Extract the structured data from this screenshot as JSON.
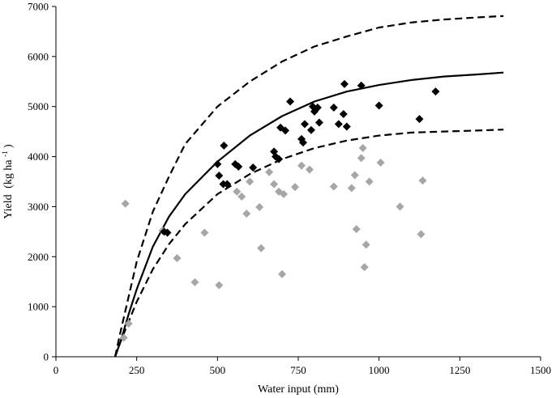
{
  "chart_data": {
    "type": "scatter",
    "title": "",
    "xlabel": "Water input (mm)",
    "ylabel": "Yield",
    "ylabel_unit_base": "(kg ha",
    "ylabel_unit_sup": "-1",
    "ylabel_unit_end": ")",
    "xlim": [
      0,
      1500
    ],
    "ylim": [
      0,
      7000
    ],
    "x_ticks": [
      0,
      250,
      500,
      750,
      1000,
      1250,
      1500
    ],
    "y_ticks": [
      0,
      1000,
      2000,
      3000,
      4000,
      5000,
      6000,
      7000
    ],
    "grid": false,
    "legend": "none",
    "colors": {
      "black_markers": "#000000",
      "grey_markers": "#a6a6a6",
      "curves": "#000000"
    },
    "series": [
      {
        "marker": "diamond",
        "color": "#000000",
        "points": [
          [
            335,
            2500
          ],
          [
            345,
            2480
          ],
          [
            500,
            3850
          ],
          [
            505,
            3620
          ],
          [
            518,
            3450
          ],
          [
            520,
            4220
          ],
          [
            530,
            3450
          ],
          [
            555,
            3850
          ],
          [
            565,
            3800
          ],
          [
            610,
            3780
          ],
          [
            675,
            4100
          ],
          [
            680,
            4000
          ],
          [
            690,
            3950
          ],
          [
            695,
            4580
          ],
          [
            710,
            4520
          ],
          [
            725,
            5100
          ],
          [
            760,
            4350
          ],
          [
            765,
            4280
          ],
          [
            770,
            4650
          ],
          [
            790,
            4530
          ],
          [
            795,
            5000
          ],
          [
            800,
            4900
          ],
          [
            810,
            4980
          ],
          [
            815,
            4680
          ],
          [
            860,
            4980
          ],
          [
            875,
            4650
          ],
          [
            890,
            4850
          ],
          [
            893,
            5450
          ],
          [
            900,
            4600
          ],
          [
            945,
            5420
          ],
          [
            1000,
            5020
          ],
          [
            1125,
            4750
          ],
          [
            1175,
            5300
          ]
        ]
      },
      {
        "marker": "diamond",
        "color": "#a6a6a6",
        "points": [
          [
            210,
            380
          ],
          [
            215,
            3060
          ],
          [
            225,
            660
          ],
          [
            330,
            2520
          ],
          [
            375,
            1970
          ],
          [
            430,
            1490
          ],
          [
            460,
            2480
          ],
          [
            505,
            1430
          ],
          [
            560,
            3300
          ],
          [
            575,
            3200
          ],
          [
            590,
            2860
          ],
          [
            600,
            3500
          ],
          [
            630,
            2990
          ],
          [
            635,
            2170
          ],
          [
            660,
            3690
          ],
          [
            675,
            3450
          ],
          [
            690,
            3300
          ],
          [
            700,
            1650
          ],
          [
            705,
            3250
          ],
          [
            740,
            3390
          ],
          [
            760,
            3820
          ],
          [
            785,
            3740
          ],
          [
            860,
            3400
          ],
          [
            915,
            3370
          ],
          [
            925,
            3630
          ],
          [
            930,
            2550
          ],
          [
            945,
            3970
          ],
          [
            950,
            4170
          ],
          [
            955,
            1790
          ],
          [
            960,
            2240
          ],
          [
            970,
            3500
          ],
          [
            1005,
            3880
          ],
          [
            1065,
            3000
          ],
          [
            1130,
            2450
          ],
          [
            1135,
            3520
          ]
        ]
      }
    ],
    "curves": [
      {
        "style": "solid",
        "points": [
          [
            183,
            0
          ],
          [
            200,
            300
          ],
          [
            225,
            850
          ],
          [
            250,
            1350
          ],
          [
            300,
            2200
          ],
          [
            350,
            2800
          ],
          [
            400,
            3250
          ],
          [
            500,
            3900
          ],
          [
            600,
            4420
          ],
          [
            700,
            4810
          ],
          [
            800,
            5100
          ],
          [
            900,
            5300
          ],
          [
            1000,
            5430
          ],
          [
            1100,
            5530
          ],
          [
            1200,
            5600
          ],
          [
            1300,
            5640
          ],
          [
            1385,
            5680
          ]
        ]
      },
      {
        "style": "dashed",
        "points": [
          [
            183,
            0
          ],
          [
            200,
            500
          ],
          [
            225,
            1200
          ],
          [
            250,
            1900
          ],
          [
            300,
            2900
          ],
          [
            350,
            3600
          ],
          [
            400,
            4250
          ],
          [
            500,
            5000
          ],
          [
            600,
            5500
          ],
          [
            700,
            5900
          ],
          [
            800,
            6200
          ],
          [
            900,
            6400
          ],
          [
            1000,
            6580
          ],
          [
            1100,
            6680
          ],
          [
            1200,
            6740
          ],
          [
            1300,
            6780
          ],
          [
            1385,
            6810
          ]
        ]
      },
      {
        "style": "dashed",
        "points": [
          [
            183,
            0
          ],
          [
            200,
            300
          ],
          [
            225,
            700
          ],
          [
            250,
            1100
          ],
          [
            300,
            1750
          ],
          [
            350,
            2250
          ],
          [
            400,
            2650
          ],
          [
            500,
            3250
          ],
          [
            600,
            3650
          ],
          [
            700,
            3950
          ],
          [
            800,
            4170
          ],
          [
            900,
            4320
          ],
          [
            1000,
            4420
          ],
          [
            1100,
            4480
          ],
          [
            1200,
            4500
          ],
          [
            1300,
            4520
          ],
          [
            1385,
            4540
          ]
        ]
      }
    ]
  }
}
